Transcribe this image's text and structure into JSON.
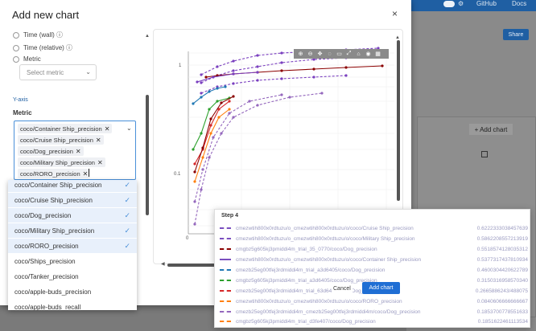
{
  "background": {
    "topbar": {
      "github": "GitHub",
      "docs": "Docs"
    },
    "share_label": "Share",
    "add_chart_label": "+ Add chart"
  },
  "modal": {
    "title": "Add new chart",
    "close": "×",
    "x_options": [
      {
        "label": "Time (wall) ⓘ"
      },
      {
        "label": "Time (relative) ⓘ"
      },
      {
        "label": "Metric"
      }
    ],
    "select_placeholder": "Select metric",
    "y_axis_label": "Y-axis",
    "metric_label": "Metric",
    "selected_tags": [
      "coco/Container Ship_precision",
      "coco/Cruise Ship_precision",
      "coco/Dog_precision",
      "coco/Military Ship_precision",
      "coco/RORO_precision"
    ],
    "dropdown_items": [
      {
        "label": "coco/Container Ship_precision",
        "selected": true
      },
      {
        "label": "coco/Cruise Ship_precision",
        "selected": true
      },
      {
        "label": "coco/Dog_precision",
        "selected": true
      },
      {
        "label": "coco/Military Ship_precision",
        "selected": true
      },
      {
        "label": "coco/RORO_precision",
        "selected": true
      },
      {
        "label": "coco/Ships_precision",
        "selected": false
      },
      {
        "label": "coco/Tanker_precision",
        "selected": false
      },
      {
        "label": "coco/apple-buds_precision",
        "selected": false
      },
      {
        "label": "coco/apple-buds_recall",
        "selected": false
      }
    ],
    "cancel_label": "Cancel",
    "add_label": "Add chart"
  },
  "chart": {
    "y_ticks": [
      "1",
      "0.1"
    ],
    "x_ticks": [
      "0"
    ],
    "colors": [
      "#7a3fbf",
      "#8b0000",
      "#ff7f0e",
      "#1f77b4",
      "#2ca02c",
      "#d62728",
      "#9467bd"
    ]
  },
  "tooltip": {
    "title": "Step 4",
    "rows": [
      {
        "name": "cmezwtih800x0rdtuzu/o_cmezwtih800x0rdtuzu/o/coco/Cruise Ship_precision",
        "value": "0.6222333038457639"
      },
      {
        "name": "cmezwtih800x0rdtuzu/o_cmezwtih800x0rdtuzu/o/coco/Military Ship_precision",
        "value": "0.5862208557213919"
      },
      {
        "name": "cmgbz5g605kj3pmiddi4m_trial_35_0770/coco/Dog_precision",
        "value": "0.5518574128035312"
      },
      {
        "name": "cmezwtih800x0rdtuzu/o_cmezwtih800x0rdtuzu/o/coco/Container Ship_precision",
        "value": "0.5377317437810934"
      },
      {
        "name": "cmezb25eg00tfej3rdmiddi4m_trial_a3d6405/coco/Dog_precision",
        "value": "0.4600304420622789"
      },
      {
        "name": "cmgbz5g605kj3pmiddi4m_trial_a3d6405/coco/Dog_precision",
        "value": "0.3150316958570340"
      },
      {
        "name": "cmezb25eg00tfej3rdmiddi4m_trial_63d6405/coco/Dog_precision",
        "value": "0.2665886243/488075"
      },
      {
        "name": "cmezwtih800x0rdtuzu/o_cmezwtih800x0rdtuzu/o/coco/RORO_precision",
        "value": "0.0840606666666667"
      },
      {
        "name": "cmezb25eg00tfej3rdmiddi4m_cmezb25eg00tfej3rdmiddi4m/coco/Dog_precision",
        "value": "0.1853700778551633"
      },
      {
        "name": "cmgbz5g605kj3pmiddi4m_trial_d3fe407/coco/Dog_precision",
        "value": "0.1851622461113534"
      }
    ]
  }
}
